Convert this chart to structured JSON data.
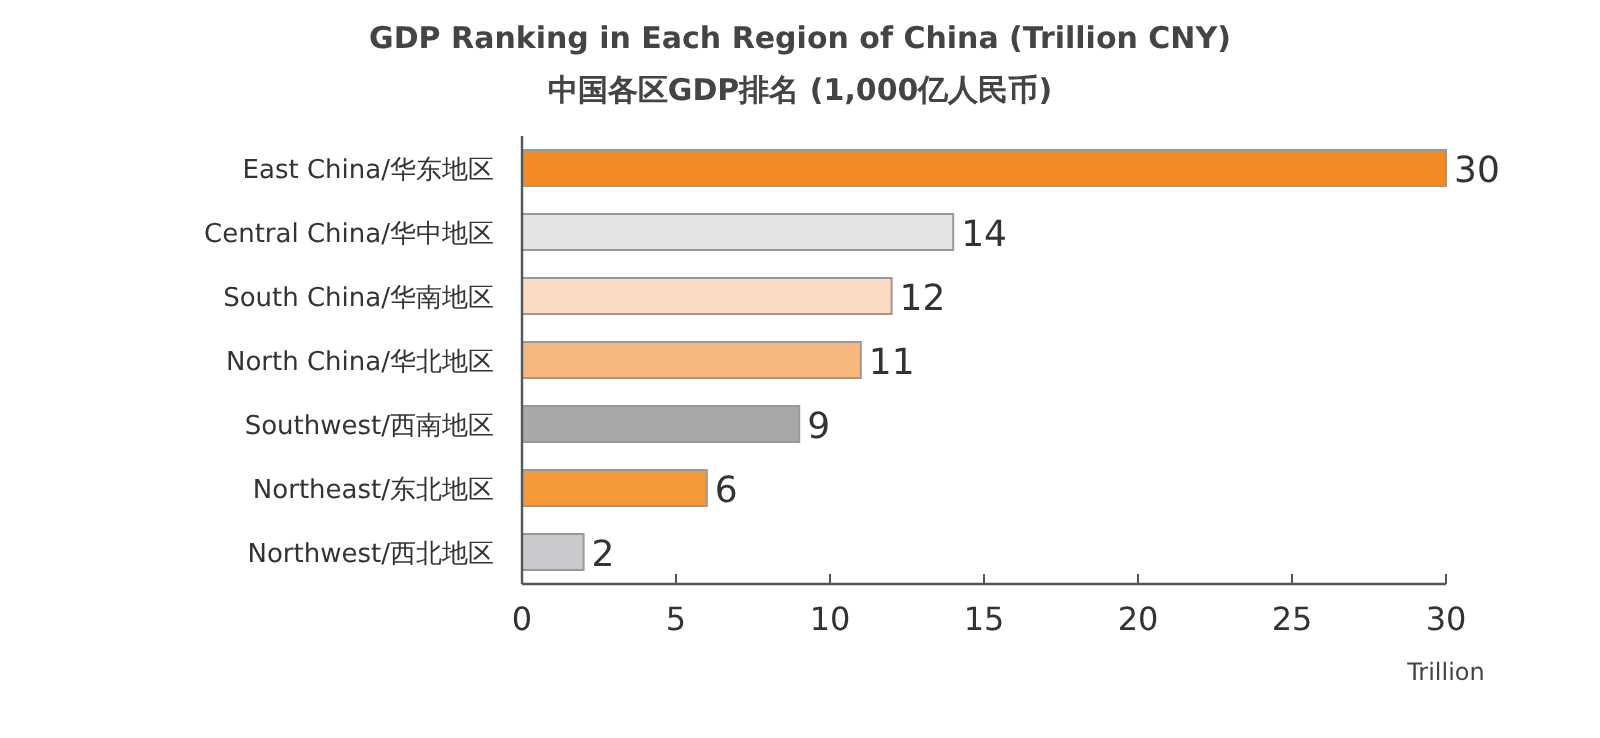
{
  "chart_data": {
    "type": "bar",
    "orientation": "horizontal",
    "title": "GDP Ranking in Each Region of China (Trillion CNY)",
    "subtitle": "中国各区GDP排名 (1,000亿人民币)",
    "xlabel": "Trillion",
    "categories": [
      "East China/华东地区",
      "Central China/华中地区",
      "South China/华南地区",
      "North China/华北地区",
      "Southwest/西南地区",
      "Northeast/东北地区",
      "Northwest/西北地区"
    ],
    "values": [
      30,
      14,
      12,
      11,
      9,
      6,
      2
    ],
    "colors": [
      "#f28a25",
      "#e2e3e5",
      "#fbdcc3",
      "#f8b77c",
      "#a8a8aa",
      "#f5983a",
      "#c9cacd"
    ],
    "xlim": [
      0,
      30
    ],
    "xticks": [
      0,
      5,
      10,
      15,
      20,
      25,
      30
    ],
    "data_labels": true
  }
}
